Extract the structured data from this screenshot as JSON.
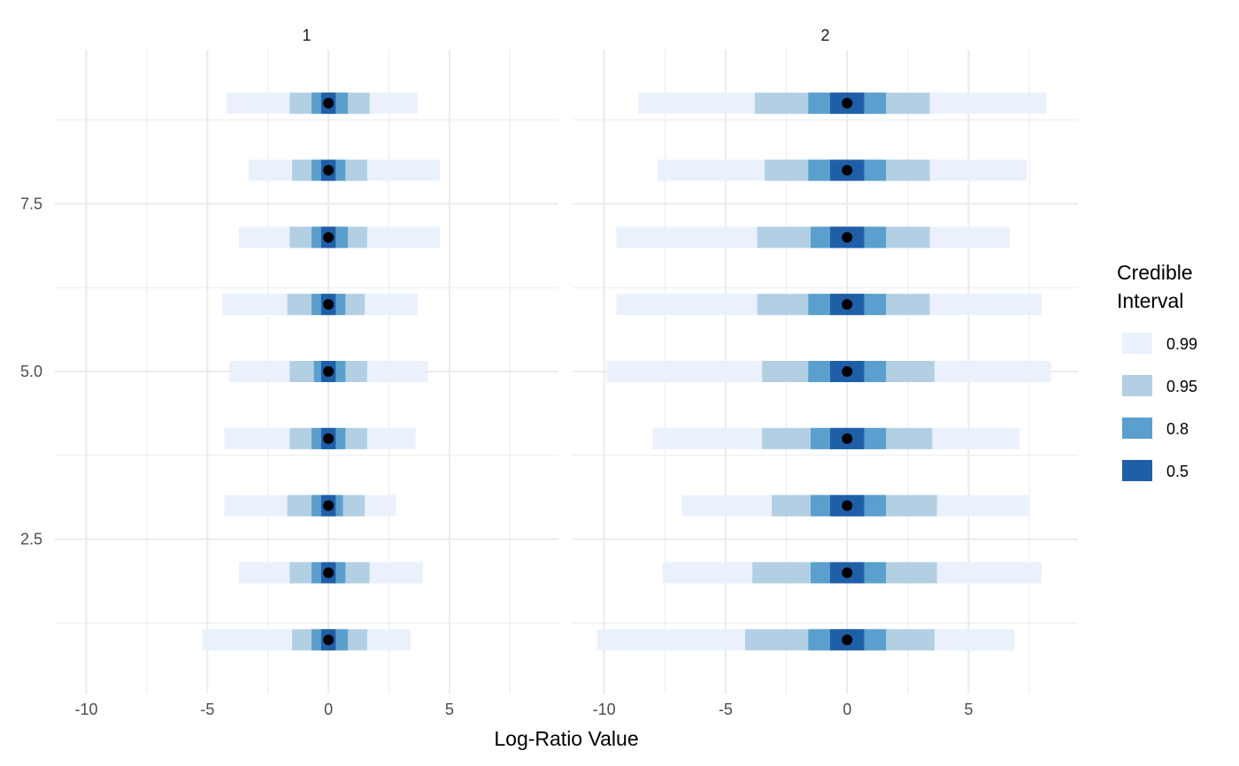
{
  "chart_data": {
    "type": "interval",
    "xlabel": "Log-Ratio Value",
    "ylabel": "",
    "x_ticks": [
      -10,
      -5,
      0,
      5
    ],
    "x_tick_labels": [
      "-10",
      "-5",
      "0",
      "5"
    ],
    "y_ticks": [
      2.5,
      5.0,
      7.5
    ],
    "y_tick_labels": [
      "2.5",
      "5.0",
      "7.5"
    ],
    "xlim": [
      -11.3,
      9.5
    ],
    "ylim": [
      0.2,
      9.8
    ],
    "grid": true,
    "legend": {
      "title_lines": [
        "Credible",
        "Interval"
      ],
      "placement": "right",
      "entries": [
        {
          "label": "0.99",
          "color": "#eaf1fd"
        },
        {
          "label": "0.95",
          "color": "#b2cfe4"
        },
        {
          "label": "0.8",
          "color": "#5a9fcd"
        },
        {
          "label": "0.5",
          "color": "#1f5fa8"
        }
      ]
    },
    "point_color": "#000000",
    "panels": [
      {
        "label": "1",
        "rows": [
          {
            "y": 1,
            "median": 0.0,
            "i99": [
              -5.2,
              3.4
            ],
            "i95": [
              -1.5,
              1.6
            ],
            "i80": [
              -0.7,
              0.8
            ],
            "i50": [
              -0.3,
              0.3
            ]
          },
          {
            "y": 2,
            "median": 0.0,
            "i99": [
              -3.7,
              3.9
            ],
            "i95": [
              -1.6,
              1.7
            ],
            "i80": [
              -0.7,
              0.7
            ],
            "i50": [
              -0.3,
              0.3
            ]
          },
          {
            "y": 3,
            "median": 0.0,
            "i99": [
              -4.3,
              2.8
            ],
            "i95": [
              -1.7,
              1.5
            ],
            "i80": [
              -0.7,
              0.6
            ],
            "i50": [
              -0.3,
              0.3
            ]
          },
          {
            "y": 4,
            "median": 0.0,
            "i99": [
              -4.3,
              3.6
            ],
            "i95": [
              -1.6,
              1.6
            ],
            "i80": [
              -0.7,
              0.7
            ],
            "i50": [
              -0.3,
              0.3
            ]
          },
          {
            "y": 5,
            "median": 0.0,
            "i99": [
              -4.1,
              4.1
            ],
            "i95": [
              -1.6,
              1.6
            ],
            "i80": [
              -0.6,
              0.7
            ],
            "i50": [
              -0.3,
              0.3
            ]
          },
          {
            "y": 6,
            "median": 0.0,
            "i99": [
              -4.4,
              3.7
            ],
            "i95": [
              -1.7,
              1.5
            ],
            "i80": [
              -0.7,
              0.7
            ],
            "i50": [
              -0.3,
              0.3
            ]
          },
          {
            "y": 7,
            "median": 0.0,
            "i99": [
              -3.7,
              4.6
            ],
            "i95": [
              -1.6,
              1.6
            ],
            "i80": [
              -0.7,
              0.8
            ],
            "i50": [
              -0.3,
              0.3
            ]
          },
          {
            "y": 8,
            "median": 0.0,
            "i99": [
              -3.3,
              4.6
            ],
            "i95": [
              -1.5,
              1.6
            ],
            "i80": [
              -0.7,
              0.7
            ],
            "i50": [
              -0.3,
              0.3
            ]
          },
          {
            "y": 9,
            "median": 0.0,
            "i99": [
              -4.2,
              3.7
            ],
            "i95": [
              -1.6,
              1.7
            ],
            "i80": [
              -0.7,
              0.8
            ],
            "i50": [
              -0.3,
              0.3
            ]
          }
        ]
      },
      {
        "label": "2",
        "rows": [
          {
            "y": 1,
            "median": 0.0,
            "i99": [
              -10.3,
              6.9
            ],
            "i95": [
              -4.2,
              3.6
            ],
            "i80": [
              -1.6,
              1.6
            ],
            "i50": [
              -0.7,
              0.7
            ]
          },
          {
            "y": 2,
            "median": 0.0,
            "i99": [
              -7.6,
              8.0
            ],
            "i95": [
              -3.9,
              3.7
            ],
            "i80": [
              -1.5,
              1.6
            ],
            "i50": [
              -0.7,
              0.7
            ]
          },
          {
            "y": 3,
            "median": 0.0,
            "i99": [
              -6.8,
              7.5
            ],
            "i95": [
              -3.1,
              3.7
            ],
            "i80": [
              -1.5,
              1.6
            ],
            "i50": [
              -0.7,
              0.7
            ]
          },
          {
            "y": 4,
            "median": 0.0,
            "i99": [
              -8.0,
              7.1
            ],
            "i95": [
              -3.5,
              3.5
            ],
            "i80": [
              -1.5,
              1.6
            ],
            "i50": [
              -0.7,
              0.7
            ]
          },
          {
            "y": 5,
            "median": 0.0,
            "i99": [
              -9.9,
              8.4
            ],
            "i95": [
              -3.5,
              3.6
            ],
            "i80": [
              -1.6,
              1.6
            ],
            "i50": [
              -0.7,
              0.7
            ]
          },
          {
            "y": 6,
            "median": 0.0,
            "i99": [
              -9.5,
              8.0
            ],
            "i95": [
              -3.7,
              3.4
            ],
            "i80": [
              -1.6,
              1.6
            ],
            "i50": [
              -0.7,
              0.7
            ]
          },
          {
            "y": 7,
            "median": 0.0,
            "i99": [
              -9.5,
              6.7
            ],
            "i95": [
              -3.7,
              3.4
            ],
            "i80": [
              -1.5,
              1.6
            ],
            "i50": [
              -0.7,
              0.7
            ]
          },
          {
            "y": 8,
            "median": 0.0,
            "i99": [
              -7.8,
              7.4
            ],
            "i95": [
              -3.4,
              3.4
            ],
            "i80": [
              -1.6,
              1.6
            ],
            "i50": [
              -0.7,
              0.7
            ]
          },
          {
            "y": 9,
            "median": 0.0,
            "i99": [
              -8.6,
              8.2
            ],
            "i95": [
              -3.8,
              3.4
            ],
            "i80": [
              -1.6,
              1.6
            ],
            "i50": [
              -0.7,
              0.7
            ]
          }
        ]
      }
    ]
  }
}
